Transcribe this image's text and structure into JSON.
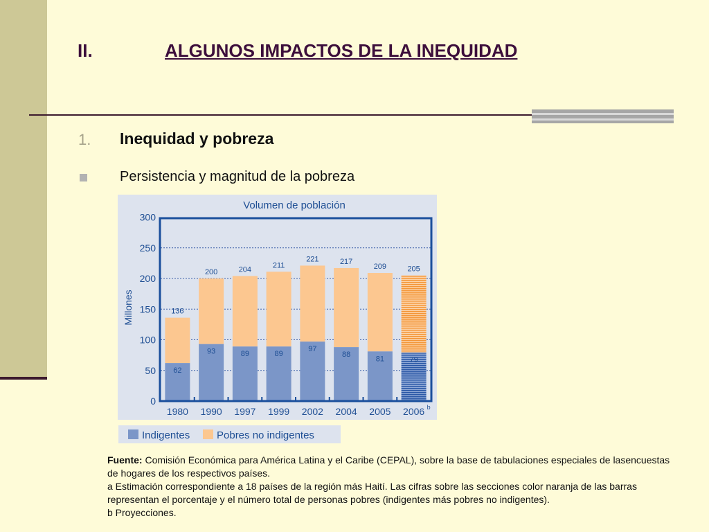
{
  "slide": {
    "title_number": "II.",
    "title_text": "ALGUNOS IMPACTOS DE LA INEQUIDAD",
    "section_number": "1.",
    "section_title": "Inequidad y pobreza",
    "bullet_text": "Persistencia y magnitud de la pobreza"
  },
  "colors": {
    "indigentes": "#7b96c8",
    "pobres_no_indigentes": "#fcc790",
    "frame": "#1a4f9c",
    "title": "#3d0f3c"
  },
  "chart_data": {
    "type": "bar",
    "stacked": true,
    "title": "Volumen de población",
    "ylabel": "Millones",
    "xlabel": "",
    "ylim": [
      0,
      300
    ],
    "yticks": [
      "0",
      "50",
      "100",
      "150",
      "200",
      "250",
      "300"
    ],
    "categories": [
      "1980",
      "1990",
      "1997",
      "1999",
      "2002",
      "2004",
      "2005",
      "2006"
    ],
    "category_superscripts": [
      "",
      "",
      "",
      "",
      "",
      "",
      "",
      "b"
    ],
    "projected": [
      false,
      false,
      false,
      false,
      false,
      false,
      false,
      true
    ],
    "series": [
      {
        "name": "Indigentes",
        "values": [
          62,
          93,
          89,
          89,
          97,
          88,
          81,
          79
        ]
      },
      {
        "name": "Pobres no indigentes",
        "values": [
          74,
          107,
          115,
          122,
          124,
          129,
          128,
          126
        ]
      }
    ],
    "total_labels": [
      "136",
      "200",
      "204",
      "211",
      "221",
      "217",
      "209",
      "205"
    ],
    "indigent_labels": [
      "62",
      "93",
      "89",
      "89",
      "97",
      "88",
      "81",
      "79"
    ],
    "grid": true,
    "legend": "bottom-left"
  },
  "footnote": {
    "fuente_label": "Fuente:",
    "fuente_text": " Comisión Económica para América Latina y el Caribe (CEPAL), sobre la base de tabulaciones especiales de lasencuestas de hogares de los respectivos países.",
    "note_a": "a Estimación correspondiente a 18 países de la región más Haití. Las cifras sobre las secciones color naranja de las barras representan el porcentaje y el número total de personas pobres (indigentes más pobres no indigentes).",
    "note_b": "b Proyecciones."
  }
}
